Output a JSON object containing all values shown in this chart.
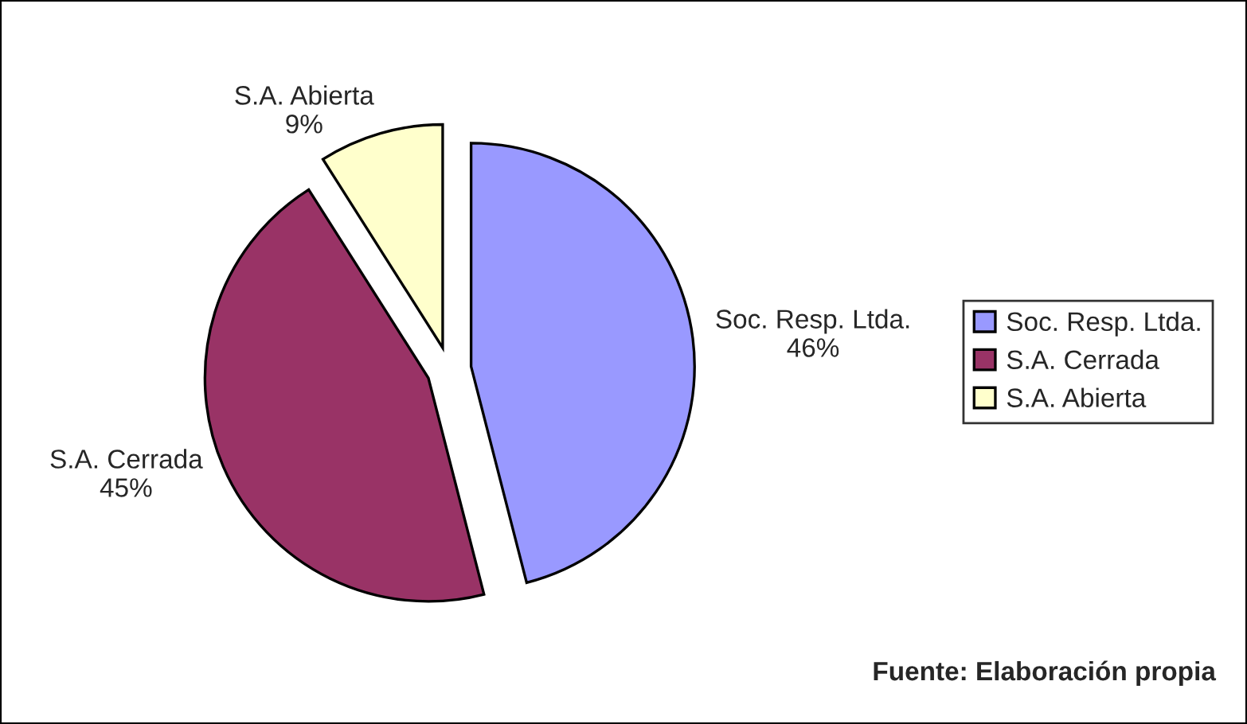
{
  "chart_data": {
    "type": "pie",
    "categories": [
      "Soc. Resp. Ltda.",
      "S.A. Cerrada",
      "S.A. Abierta"
    ],
    "values": [
      46,
      45,
      9
    ],
    "colors": [
      "#9999ff",
      "#993366",
      "#ffffcc"
    ],
    "value_labels": [
      "46%",
      "45%",
      "9%"
    ],
    "legend": "right",
    "annotations": [
      "Fuente: Elaboración propia"
    ]
  }
}
